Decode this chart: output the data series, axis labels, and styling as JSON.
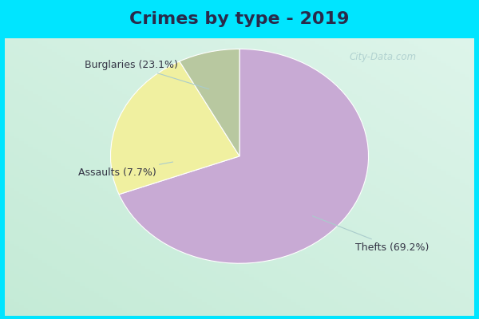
{
  "title": "Crimes by type - 2019",
  "slices": [
    {
      "label": "Thefts (69.2%)",
      "value": 69.2,
      "color": "#c8aad4"
    },
    {
      "label": "Burglaries (23.1%)",
      "value": 23.1,
      "color": "#f0f0a0"
    },
    {
      "label": "Assaults (7.7%)",
      "value": 7.7,
      "color": "#b8c8a0"
    }
  ],
  "bg_color_top": "#00e5ff",
  "bg_color_main_tl": "#c8eee0",
  "bg_color_main_br": "#d8f0e8",
  "title_fontsize": 16,
  "label_fontsize": 9,
  "watermark": "City-Data.com",
  "startangle": 90,
  "title_color": "#2a2a4a"
}
